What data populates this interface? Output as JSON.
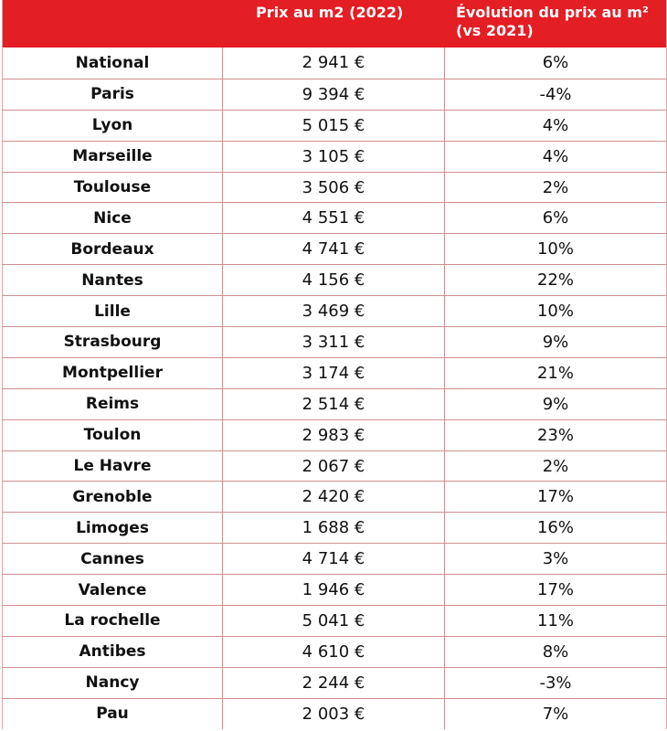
{
  "table": {
    "headers": {
      "city": "",
      "price": "Prix au m2 (2022)",
      "evolution": "Évolution du prix au m² (vs 2021)"
    },
    "rows": [
      {
        "city": "National",
        "price": "2 941 €",
        "evolution": "6%"
      },
      {
        "city": "Paris",
        "price": "9 394 €",
        "evolution": "-4%"
      },
      {
        "city": "Lyon",
        "price": "5 015 €",
        "evolution": "4%"
      },
      {
        "city": "Marseille",
        "price": "3 105 €",
        "evolution": "4%"
      },
      {
        "city": "Toulouse",
        "price": "3 506 €",
        "evolution": "2%"
      },
      {
        "city": "Nice",
        "price": "4 551 €",
        "evolution": "6%"
      },
      {
        "city": "Bordeaux",
        "price": "4 741 €",
        "evolution": "10%"
      },
      {
        "city": "Nantes",
        "price": "4 156 €",
        "evolution": "22%"
      },
      {
        "city": "Lille",
        "price": "3 469 €",
        "evolution": "10%"
      },
      {
        "city": "Strasbourg",
        "price": "3 311 €",
        "evolution": "9%"
      },
      {
        "city": "Montpellier",
        "price": "3 174 €",
        "evolution": "21%"
      },
      {
        "city": "Reims",
        "price": "2 514 €",
        "evolution": "9%"
      },
      {
        "city": "Toulon",
        "price": "2 983 €",
        "evolution": "23%"
      },
      {
        "city": "Le Havre",
        "price": "2 067 €",
        "evolution": "2%"
      },
      {
        "city": "Grenoble",
        "price": "2 420 €",
        "evolution": "17%"
      },
      {
        "city": "Limoges",
        "price": "1 688 €",
        "evolution": "16%"
      },
      {
        "city": "Cannes",
        "price": "4 714 €",
        "evolution": "3%"
      },
      {
        "city": "Valence",
        "price": "1 946 €",
        "evolution": "17%"
      },
      {
        "city": "La rochelle",
        "price": "5 041 €",
        "evolution": "11%"
      },
      {
        "city": "Antibes",
        "price": "4 610 €",
        "evolution": "8%"
      },
      {
        "city": "Nancy",
        "price": "2 244 €",
        "evolution": "-3%"
      },
      {
        "city": "Pau",
        "price": "2 003 €",
        "evolution": "7%"
      }
    ]
  },
  "colors": {
    "header_background": "#e31e24",
    "header_text": "#ffffff",
    "grid_line": "#cf8f8f"
  }
}
